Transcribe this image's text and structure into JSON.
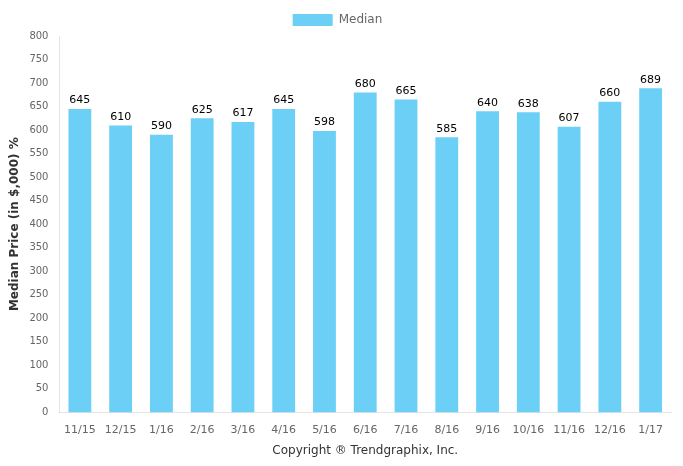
{
  "chart_data": {
    "type": "bar",
    "categories": [
      "11/15",
      "12/15",
      "1/16",
      "2/16",
      "3/16",
      "4/16",
      "5/16",
      "6/16",
      "7/16",
      "8/16",
      "9/16",
      "10/16",
      "11/16",
      "12/16",
      "1/17"
    ],
    "series": [
      {
        "name": "Median",
        "color": "#6CCFF6",
        "values": [
          645,
          610,
          590,
          625,
          617,
          645,
          598,
          680,
          665,
          585,
          640,
          638,
          607,
          660,
          689
        ]
      }
    ],
    "ylabel": "Median Price (in $,000) %",
    "xlabel": "Copyright ® Trendgraphix, Inc.",
    "ylim": [
      0,
      800
    ],
    "yticks": [
      0,
      50,
      100,
      150,
      200,
      250,
      300,
      350,
      400,
      450,
      500,
      550,
      600,
      650,
      700,
      750,
      800
    ],
    "grid": false,
    "legend": "top",
    "data_labels": true
  }
}
